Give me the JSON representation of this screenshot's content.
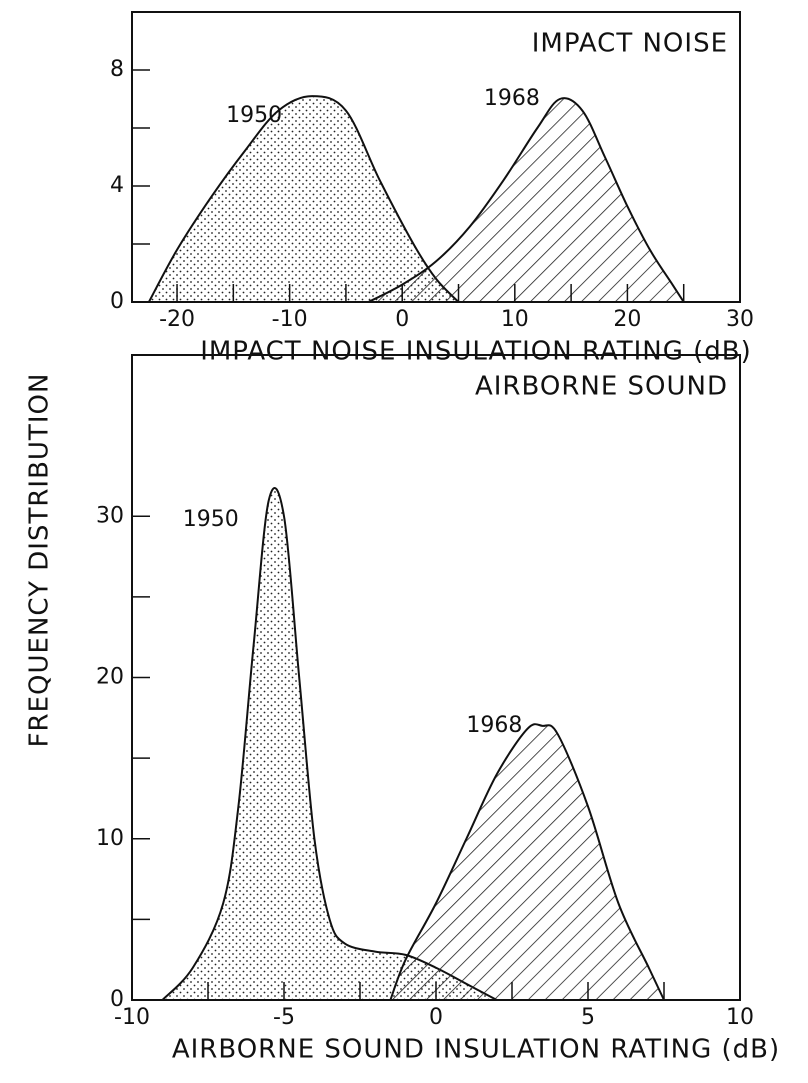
{
  "chart_data": [
    {
      "type": "area",
      "title": "IMPACT NOISE",
      "xlabel": "IMPACT NOISE INSULATION RATING (dB)",
      "ylabel": "FREQUENCY DISTRIBUTION",
      "xlim": [
        -24,
        30
      ],
      "xticks": [
        -20,
        -10,
        0,
        10,
        20,
        30
      ],
      "xminorticks": [
        -15,
        -5,
        5,
        15,
        25
      ],
      "ylim": [
        0,
        10
      ],
      "yticks": [
        0,
        4,
        8
      ],
      "yminorticks": [
        2,
        6
      ],
      "series": [
        {
          "name": "1950",
          "pattern": "dots",
          "x": [
            -22.5,
            -20,
            -17,
            -14,
            -11,
            -8,
            -5,
            -2,
            1,
            3,
            5
          ],
          "values": [
            0,
            1.8,
            3.6,
            5.2,
            6.6,
            7.1,
            6.6,
            4.2,
            2,
            0.8,
            0
          ]
        },
        {
          "name": "1968",
          "pattern": "hatch",
          "x": [
            -3,
            0,
            3,
            6,
            9,
            12,
            14,
            16,
            18,
            20,
            22,
            24,
            25
          ],
          "values": [
            0,
            0.6,
            1.4,
            2.6,
            4.2,
            6,
            7,
            6.6,
            5,
            3.3,
            1.8,
            0.6,
            0
          ]
        }
      ]
    },
    {
      "type": "area",
      "title": "AIRBORNE SOUND",
      "xlabel": "AIRBORNE SOUND INSULATION RATING (dB)",
      "xlim": [
        -10,
        10
      ],
      "xticks": [
        -10,
        -5,
        0,
        5,
        10
      ],
      "xminorticks": [
        -7.5,
        -2.5,
        2.5,
        7.5
      ],
      "ylim": [
        0,
        40
      ],
      "yticks": [
        0,
        10,
        20,
        30
      ],
      "yminorticks": [
        5,
        15,
        25
      ],
      "series": [
        {
          "name": "1950",
          "pattern": "dots",
          "x": [
            -9,
            -8,
            -7,
            -6.5,
            -6,
            -5.5,
            -5,
            -4.5,
            -4,
            -3.5,
            -3,
            -2,
            -1,
            0,
            1,
            2
          ],
          "values": [
            0,
            2,
            6,
            12,
            22,
            31,
            30,
            20,
            10,
            5,
            3.5,
            3,
            2.8,
            2,
            1,
            0
          ]
        },
        {
          "name": "1968",
          "pattern": "hatch",
          "x": [
            -1.5,
            -1,
            0,
            1,
            2,
            3,
            3.5,
            4,
            5,
            6,
            7,
            7.5
          ],
          "values": [
            0,
            2.5,
            6,
            10,
            14,
            16.8,
            17,
            16.5,
            12,
            6,
            2,
            0
          ]
        }
      ]
    }
  ]
}
